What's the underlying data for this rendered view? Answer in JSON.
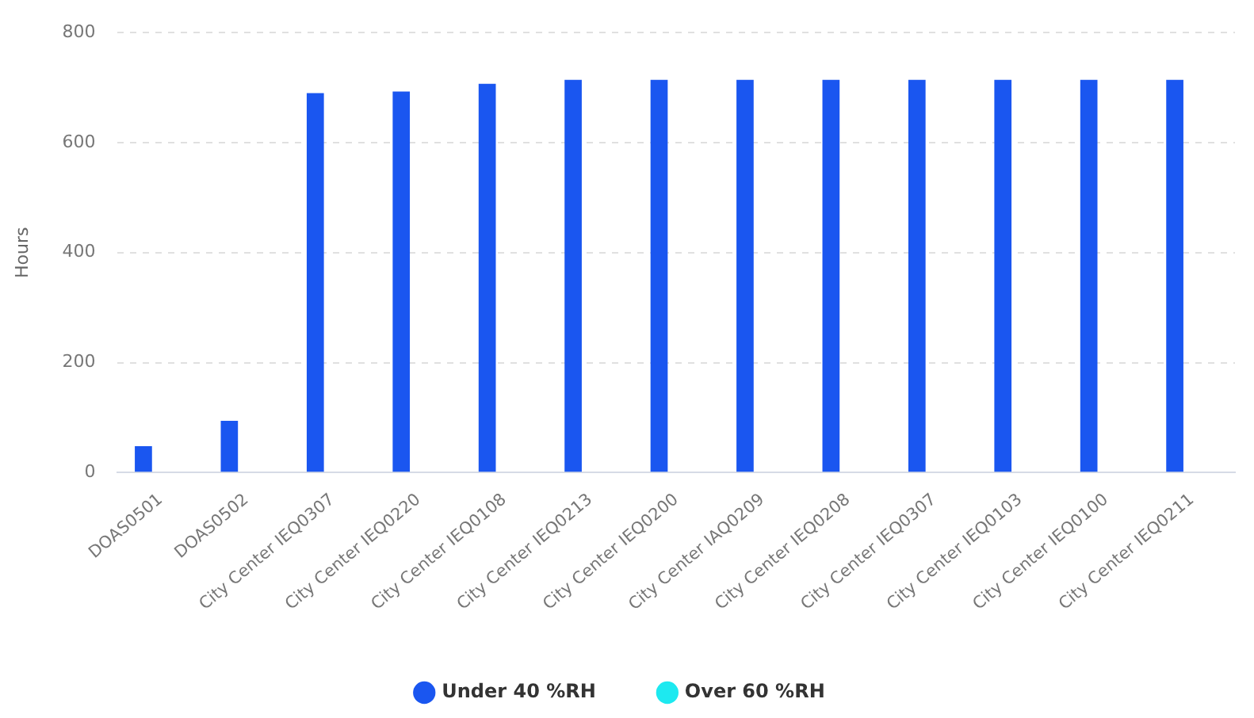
{
  "chart_data": {
    "type": "bar",
    "ylabel": "Hours",
    "categories": [
      "DOAS0501",
      "DOAS0502",
      "City Center IEQ0307",
      "City Center IEQ0220",
      "City Center IEQ0108",
      "City Center IEQ0213",
      "City Center IEQ0200",
      "City Center IAQ0209",
      "City Center IEQ0208",
      "City Center IEQ0307",
      "City Center IEQ0103",
      "City Center IEQ0100",
      "City Center IEQ0211"
    ],
    "series": [
      {
        "name": "Under 40 %RH",
        "color": "#1a56f0",
        "values": [
          48,
          94,
          690,
          693,
          707,
          714,
          714,
          714,
          714,
          714,
          714,
          714,
          714
        ]
      },
      {
        "name": "Over 60 %RH",
        "color": "#1de9f0",
        "values": [
          0,
          0,
          0,
          0,
          0,
          0,
          0,
          0,
          0,
          0,
          0,
          0,
          0
        ]
      }
    ],
    "ylim": [
      0,
      800
    ],
    "yticks": [
      0,
      200,
      400,
      600,
      800
    ],
    "grid": "y",
    "legend": "bottom"
  }
}
